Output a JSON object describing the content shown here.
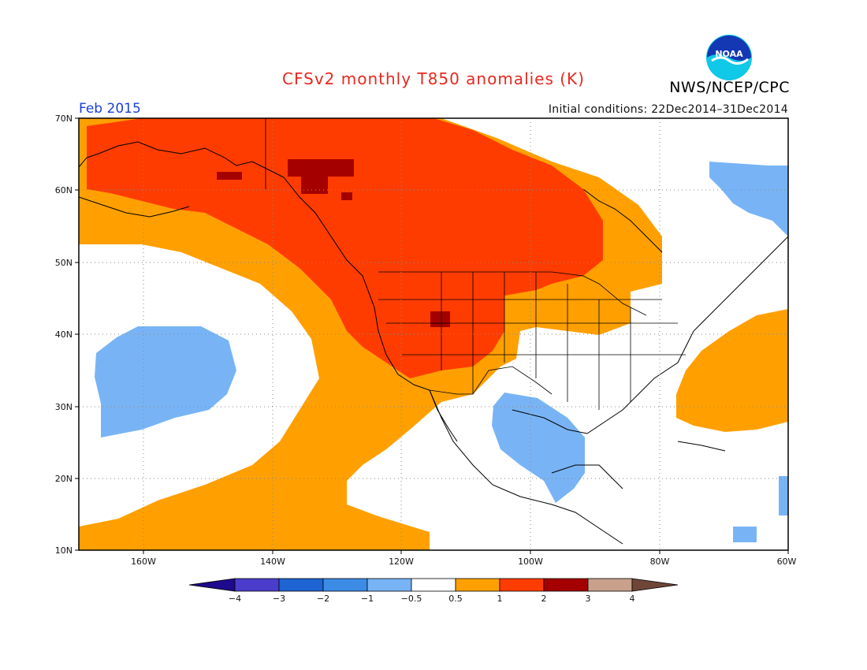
{
  "title": "CFSv2 monthly T850 anomalies (K)",
  "agency": "NWS/NCEP/CPC",
  "logo_text": "NOAA",
  "month": "Feb 2015",
  "initial_conditions": "Initial conditions: 22Dec2014–31Dec2014",
  "lat_labels": [
    "70N",
    "60N",
    "50N",
    "40N",
    "30N",
    "20N",
    "10N"
  ],
  "lon_labels": [
    "160W",
    "140W",
    "120W",
    "100W",
    "80W",
    "60W"
  ],
  "colorbar": {
    "colors": [
      "#1e0a8c",
      "#4b3dcc",
      "#1e64d2",
      "#3c8ce6",
      "#78b4f5",
      "#ffffff",
      "#ffa000",
      "#ff3c00",
      "#a50000",
      "#c8a08c",
      "#6e4637"
    ],
    "labels": [
      "−4",
      "−3",
      "−2",
      "−1",
      "−0.5",
      "0.5",
      "1",
      "2",
      "3",
      "4"
    ]
  },
  "colors": {
    "title": "#e8281e",
    "month": "#1a3fd8",
    "orange": "#ffa000",
    "red": "#ff3c00",
    "darkred": "#a50000",
    "blue": "#78b4f5"
  }
}
